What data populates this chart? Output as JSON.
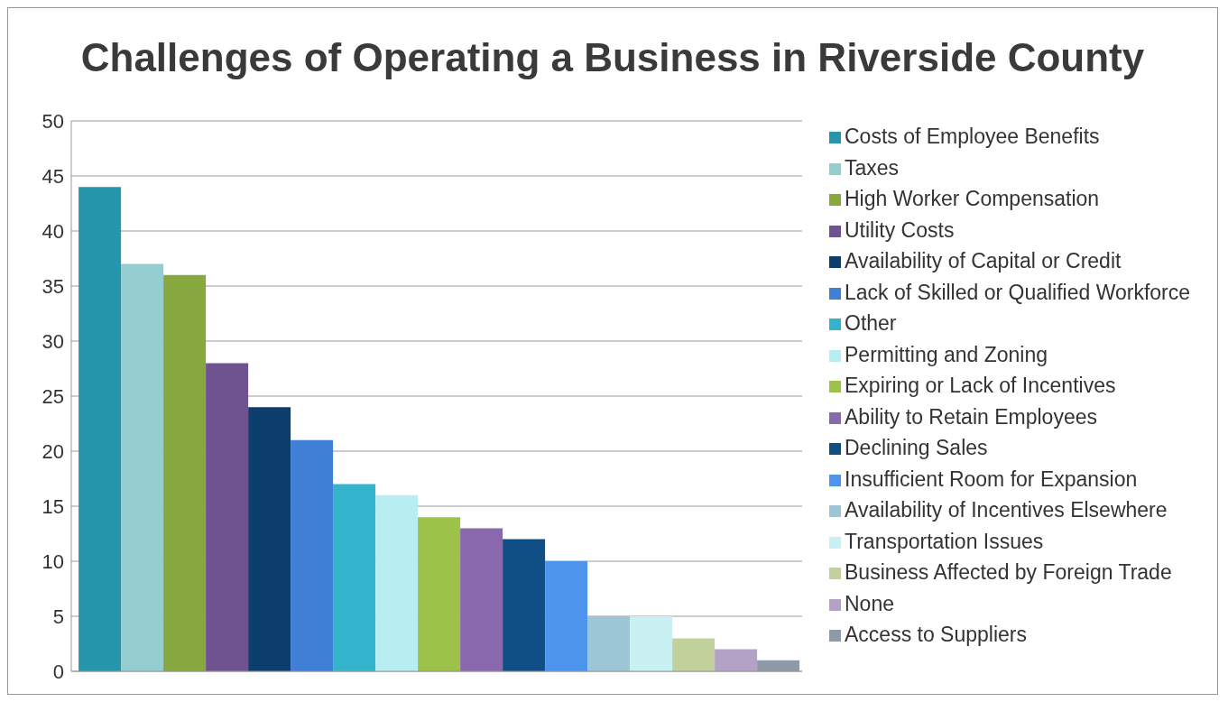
{
  "chart_data": {
    "type": "bar",
    "title": "Challenges of Operating a Business in Riverside County",
    "categories": [
      null
    ],
    "series": [
      {
        "name": "Costs of Employee Benefits",
        "color": "#2596ab",
        "values": [
          44
        ]
      },
      {
        "name": "Taxes",
        "color": "#93cdd0",
        "values": [
          37
        ]
      },
      {
        "name": "High Worker Compensation",
        "color": "#86a83e",
        "values": [
          36
        ]
      },
      {
        "name": "Utility Costs",
        "color": "#6f5290",
        "values": [
          28
        ]
      },
      {
        "name": "Availability of Capital or Credit",
        "color": "#0d3f6e",
        "values": [
          24
        ]
      },
      {
        "name": "Lack of Skilled or Qualified Workforce",
        "color": "#3f7fd6",
        "values": [
          21
        ]
      },
      {
        "name": "Other",
        "color": "#33b3cc",
        "values": [
          17
        ]
      },
      {
        "name": "Permitting and Zoning",
        "color": "#b8eef2",
        "values": [
          16
        ]
      },
      {
        "name": "Expiring or Lack of Incentives",
        "color": "#9cc24a",
        "values": [
          14
        ]
      },
      {
        "name": "Ability to Retain Employees",
        "color": "#8a68ad",
        "values": [
          13
        ]
      },
      {
        "name": "Declining Sales",
        "color": "#0f4f85",
        "values": [
          12
        ]
      },
      {
        "name": "Insufficient Room for Expansion",
        "color": "#4d94ec",
        "values": [
          10
        ]
      },
      {
        "name": "Availability of Incentives Elsewhere",
        "color": "#9cc5d6",
        "values": [
          5
        ]
      },
      {
        "name": "Transportation Issues",
        "color": "#c9f0f2",
        "values": [
          5
        ]
      },
      {
        "name": "Business Affected by Foreign Trade",
        "color": "#c2d19c",
        "values": [
          3
        ]
      },
      {
        "name": "None",
        "color": "#b3a2c6",
        "values": [
          2
        ]
      },
      {
        "name": "Access to Suppliers",
        "color": "#8e9aaa",
        "values": [
          1
        ]
      }
    ],
    "ylim": [
      0,
      50
    ],
    "yticks": [
      0,
      5,
      10,
      15,
      20,
      25,
      30,
      35,
      40,
      45,
      50
    ],
    "grid": "y",
    "legend": "right",
    "tick_labels": "y"
  }
}
